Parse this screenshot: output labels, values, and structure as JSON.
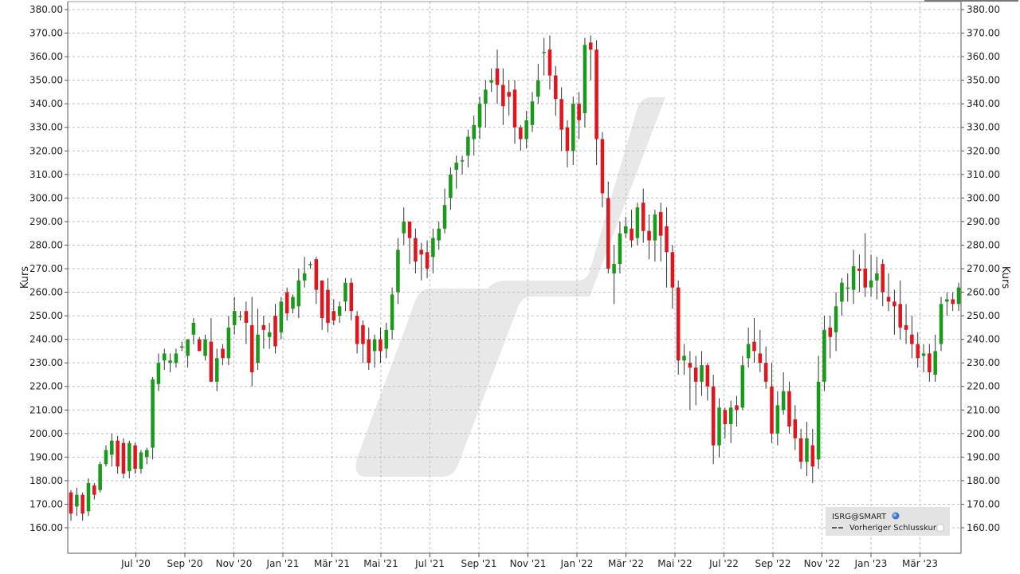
{
  "chart_data": {
    "type": "candlestick",
    "ylabel": "Kurs",
    "ylim": [
      155,
      382
    ],
    "y_ticks": [
      "160.00",
      "170.00",
      "180.00",
      "190.00",
      "200.00",
      "210.00",
      "220.00",
      "230.00",
      "240.00",
      "250.00",
      "260.00",
      "270.00",
      "280.00",
      "290.00",
      "300.00",
      "310.00",
      "320.00",
      "330.00",
      "340.00",
      "350.00",
      "360.00",
      "370.00",
      "380.00"
    ],
    "x_ticks": [
      "Jul '20",
      "Sep '20",
      "Nov '20",
      "Jan '21",
      "Mär '21",
      "Mai '21",
      "Jul '21",
      "Sep '21",
      "Nov '21",
      "Jan '22",
      "Mär '22",
      "Mai '22",
      "Jul '22",
      "Sep '22",
      "Nov '22",
      "Jan '23",
      "Mär '23"
    ],
    "grid": true,
    "legend_position": "bottom-right",
    "colors": {
      "up": "#1a9a1a",
      "down": "#e0161e",
      "wick": "#333333",
      "grid": "#bdbdbd",
      "axis": "#555555",
      "watermark": "#e6e6e6",
      "legend_bg": "#e3e3e3"
    },
    "legend": {
      "symbol": "ISRG@SMART",
      "prev_close": "Vorheriger Schlusskurs"
    },
    "candles": [
      [
        175,
        166,
        176,
        163
      ],
      [
        169,
        174,
        177,
        165
      ],
      [
        174,
        166,
        175,
        163
      ],
      [
        167,
        179,
        181,
        165
      ],
      [
        178,
        174,
        179,
        172
      ],
      [
        176,
        187,
        188,
        175
      ],
      [
        187,
        193,
        195,
        186
      ],
      [
        191,
        197,
        200,
        186
      ],
      [
        197,
        186,
        199,
        183
      ],
      [
        196,
        183,
        198,
        181
      ],
      [
        184,
        196,
        197,
        181
      ],
      [
        195,
        185,
        196,
        183
      ],
      [
        185,
        192,
        193,
        183
      ],
      [
        190,
        193,
        194,
        187
      ],
      [
        194,
        223,
        224,
        189
      ],
      [
        221,
        230,
        234,
        218
      ],
      [
        231,
        234,
        236,
        227
      ],
      [
        230,
        231,
        234,
        226
      ],
      [
        230,
        234,
        236,
        228
      ],
      [
        237,
        237,
        239,
        235
      ],
      [
        233,
        240,
        240,
        228
      ],
      [
        242,
        247,
        249,
        238
      ],
      [
        240,
        235,
        241,
        235
      ],
      [
        233,
        240,
        242,
        231
      ],
      [
        239,
        222,
        249,
        222
      ],
      [
        222,
        232,
        236,
        218
      ],
      [
        236,
        232,
        238,
        229
      ],
      [
        232,
        245,
        250,
        229
      ],
      [
        246,
        252,
        258,
        242
      ],
      [
        250,
        250,
        252,
        248
      ],
      [
        252,
        247,
        256,
        238
      ],
      [
        246,
        226,
        258,
        220
      ],
      [
        230,
        242,
        253,
        227
      ],
      [
        246,
        244,
        250,
        236
      ],
      [
        241,
        243,
        247,
        236
      ],
      [
        250,
        237,
        255,
        234
      ],
      [
        243,
        256,
        258,
        240
      ],
      [
        260,
        251,
        262,
        248
      ],
      [
        253,
        258,
        259,
        251
      ],
      [
        254,
        265,
        270,
        249
      ],
      [
        265,
        268,
        275,
        262
      ],
      [
        272,
        272,
        273,
        270
      ],
      [
        274,
        261,
        275,
        255
      ],
      [
        265,
        249,
        265,
        244
      ],
      [
        261,
        247,
        266,
        243
      ],
      [
        252,
        248,
        257,
        246
      ],
      [
        250,
        254,
        256,
        247
      ],
      [
        256,
        264,
        266,
        252
      ],
      [
        264,
        252,
        266,
        248
      ],
      [
        250,
        238,
        252,
        234
      ],
      [
        246,
        238,
        248,
        230
      ],
      [
        240,
        230,
        245,
        227
      ],
      [
        235,
        240,
        242,
        228
      ],
      [
        240,
        235,
        245,
        230
      ],
      [
        236,
        244,
        247,
        232
      ],
      [
        244,
        259,
        262,
        240
      ],
      [
        260,
        278,
        283,
        255
      ],
      [
        285,
        290,
        296,
        280
      ],
      [
        290,
        283,
        290,
        272
      ],
      [
        283,
        273,
        287,
        268
      ],
      [
        278,
        276,
        281,
        265
      ],
      [
        277,
        270,
        282,
        266
      ],
      [
        275,
        283,
        287,
        268
      ],
      [
        282,
        287,
        290,
        278
      ],
      [
        287,
        297,
        304,
        285
      ],
      [
        300,
        310,
        313,
        295
      ],
      [
        312,
        315,
        318,
        304
      ],
      [
        316,
        316,
        318,
        310
      ],
      [
        318,
        326,
        329,
        313
      ],
      [
        325,
        331,
        335,
        318
      ],
      [
        330,
        340,
        343,
        325
      ],
      [
        340,
        346,
        350,
        330
      ],
      [
        349,
        350,
        355,
        345
      ],
      [
        355,
        348,
        363,
        340
      ],
      [
        348,
        339,
        355,
        331
      ],
      [
        345,
        343,
        350,
        335
      ],
      [
        346,
        330,
        350,
        323
      ],
      [
        330,
        325,
        331,
        320
      ],
      [
        325,
        333,
        337,
        321
      ],
      [
        331,
        341,
        345,
        328
      ],
      [
        343,
        350,
        357,
        340
      ],
      [
        362,
        362,
        368,
        352
      ],
      [
        363,
        352,
        369,
        346
      ],
      [
        352,
        342,
        356,
        335
      ],
      [
        342,
        329,
        347,
        320
      ],
      [
        330,
        320,
        333,
        313
      ],
      [
        320,
        340,
        343,
        314
      ],
      [
        340,
        333,
        345,
        325
      ],
      [
        336,
        365,
        368,
        330
      ],
      [
        366,
        363,
        369,
        350
      ],
      [
        363,
        325,
        367,
        314
      ],
      [
        325,
        302,
        328,
        296
      ],
      [
        300,
        270,
        307,
        268
      ],
      [
        268,
        272,
        280,
        255
      ],
      [
        272,
        285,
        290,
        268
      ],
      [
        285,
        288,
        292,
        283
      ],
      [
        287,
        282,
        295,
        279
      ],
      [
        283,
        296,
        298,
        280
      ],
      [
        298,
        286,
        304,
        281
      ],
      [
        286,
        282,
        293,
        274
      ],
      [
        282,
        293,
        295,
        273
      ],
      [
        294,
        284,
        298,
        273
      ],
      [
        288,
        277,
        296,
        262
      ],
      [
        277,
        262,
        280,
        253
      ],
      [
        262,
        231,
        265,
        225
      ],
      [
        231,
        233,
        238,
        225
      ],
      [
        230,
        228,
        235,
        210
      ],
      [
        228,
        222,
        233,
        212
      ],
      [
        222,
        229,
        235,
        216
      ],
      [
        229,
        220,
        230,
        214
      ],
      [
        220,
        195,
        225,
        187
      ],
      [
        195,
        211,
        215,
        190
      ],
      [
        210,
        204,
        211,
        198
      ],
      [
        204,
        211,
        214,
        196
      ],
      [
        212,
        210,
        216,
        203
      ],
      [
        211,
        229,
        233,
        210
      ],
      [
        232,
        238,
        245,
        228
      ],
      [
        239,
        235,
        249,
        230
      ],
      [
        234,
        230,
        244,
        226
      ],
      [
        230,
        222,
        237,
        219
      ],
      [
        220,
        200,
        230,
        196
      ],
      [
        200,
        212,
        218,
        195
      ],
      [
        210,
        218,
        226,
        208
      ],
      [
        218,
        203,
        222,
        200
      ],
      [
        206,
        198,
        212,
        193
      ],
      [
        198,
        188,
        202,
        185
      ],
      [
        188,
        198,
        205,
        182
      ],
      [
        195,
        186,
        202,
        179
      ],
      [
        189,
        222,
        233,
        185
      ],
      [
        222,
        244,
        250,
        218
      ],
      [
        245,
        241,
        250,
        232
      ],
      [
        243,
        254,
        260,
        235
      ],
      [
        256,
        264,
        266,
        250
      ],
      [
        262,
        262,
        268,
        256
      ],
      [
        261,
        271,
        278,
        255
      ],
      [
        270,
        269,
        276,
        260
      ],
      [
        270,
        262,
        285,
        258
      ],
      [
        262,
        265,
        276,
        258
      ],
      [
        265,
        268,
        275,
        257
      ],
      [
        272,
        260,
        274,
        254
      ],
      [
        258,
        256,
        268,
        252
      ],
      [
        256,
        254,
        261,
        242
      ],
      [
        255,
        245,
        265,
        240
      ],
      [
        246,
        244,
        255,
        238
      ],
      [
        242,
        238,
        250,
        232
      ],
      [
        238,
        232,
        243,
        228
      ],
      [
        233,
        234,
        238,
        226
      ],
      [
        234,
        226,
        238,
        222
      ],
      [
        225,
        235,
        242,
        222
      ],
      [
        238,
        255,
        258,
        235
      ],
      [
        256,
        257,
        260,
        250
      ],
      [
        257,
        255,
        260,
        252
      ],
      [
        255,
        262,
        264,
        252
      ]
    ]
  }
}
